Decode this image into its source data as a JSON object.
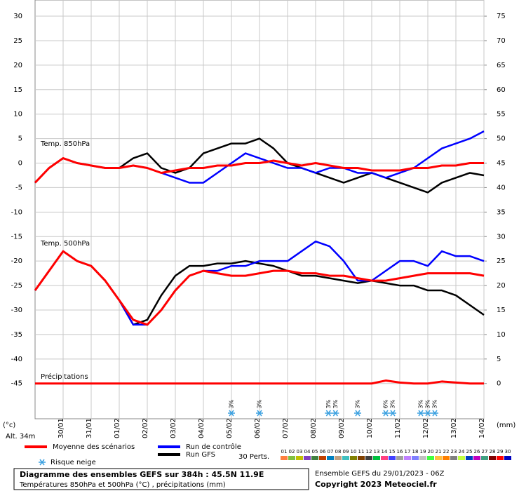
{
  "chart_data": {
    "type": "line",
    "title": "Diagramme des ensembles GEFS sur 384h : 45.5N 11.9E",
    "subtitle": "Températures 850hPa et 500hPa (°C) , précipitations (mm)",
    "run_info": "Ensemble GEFS du 29/01/2023 - 06Z",
    "copyright": "Copyright 2023 Meteociel.fr",
    "y_unit": "(°c)",
    "y2_unit": "(mm)",
    "altitude": "Alt. 34m",
    "annotations": {
      "t850": "Temp. 850hPa",
      "t500": "Temp. 500hPa",
      "precip": "Précipitations"
    },
    "grid": true,
    "xlim": [
      0,
      384
    ],
    "ylim": [
      -52.2,
      33.3
    ],
    "y2lim": [
      -7.2,
      78.3
    ],
    "yticks": [
      30,
      25,
      20,
      15,
      10,
      5,
      0,
      -5,
      -10,
      -15,
      -20,
      -25,
      -30,
      -35,
      -40,
      -45
    ],
    "y2ticks": [
      75,
      70,
      65,
      60,
      55,
      50,
      45,
      40,
      35,
      30,
      25,
      20,
      15,
      10,
      5,
      0
    ],
    "xticks": [
      {
        "value": 24,
        "label": "30/01"
      },
      {
        "value": 48,
        "label": "31/01"
      },
      {
        "value": 72,
        "label": "01/02"
      },
      {
        "value": 96,
        "label": "02/02"
      },
      {
        "value": 120,
        "label": "03/02"
      },
      {
        "value": 144,
        "label": "04/02"
      },
      {
        "value": 168,
        "label": "05/02"
      },
      {
        "value": 192,
        "label": "06/02"
      },
      {
        "value": 216,
        "label": "07/02"
      },
      {
        "value": 240,
        "label": "08/02"
      },
      {
        "value": 264,
        "label": "09/02"
      },
      {
        "value": 288,
        "label": "10/02"
      },
      {
        "value": 312,
        "label": "11/02"
      },
      {
        "value": 336,
        "label": "12/02"
      },
      {
        "value": 360,
        "label": "13/02"
      },
      {
        "value": 384,
        "label": "14/02"
      }
    ],
    "x": [
      0,
      12,
      24,
      36,
      48,
      60,
      72,
      84,
      96,
      108,
      120,
      132,
      144,
      156,
      168,
      180,
      192,
      204,
      216,
      228,
      240,
      252,
      264,
      276,
      288,
      300,
      312,
      324,
      336,
      348,
      360,
      372,
      384
    ],
    "series": [
      {
        "name": "Moyenne des scénarios",
        "color": "#ff0000",
        "values": {
          "t850": [
            -4,
            -1,
            1,
            0,
            -0.5,
            -1,
            -1,
            -0.5,
            -1,
            -2,
            -1.5,
            -1,
            -1,
            -0.5,
            -0.5,
            0,
            0,
            0.5,
            0,
            -0.5,
            0,
            -0.5,
            -1,
            -1,
            -1.5,
            -1.5,
            -1.5,
            -1,
            -1,
            -0.5,
            -0.5,
            0,
            0
          ],
          "t500": [
            -26,
            -22,
            -18,
            -20,
            -21,
            -24,
            -28,
            -32,
            -33,
            -30,
            -26,
            -23,
            -22,
            -22.5,
            -23,
            -23,
            -22.5,
            -22,
            -22,
            -22.5,
            -22.5,
            -23,
            -23,
            -23.5,
            -24,
            -24,
            -23.5,
            -23,
            -22.5,
            -22.5,
            -22.5,
            -22.5,
            -23
          ],
          "precip": [
            0,
            0,
            0,
            0,
            0,
            0,
            0,
            0,
            0,
            0,
            0,
            0,
            0,
            0,
            0,
            0,
            0,
            0,
            0,
            0,
            0,
            0,
            0,
            0,
            0,
            0.6,
            0.2,
            0,
            0,
            0.4,
            0.2,
            0,
            0
          ]
        }
      },
      {
        "name": "Run de contrôle",
        "color": "#0000ff",
        "values": {
          "t850": [
            -4,
            -1,
            1,
            0,
            -0.5,
            -1,
            -1,
            -0.5,
            -1,
            -2,
            -3,
            -4,
            -4,
            -2,
            0,
            2,
            1,
            0,
            -1,
            -1,
            -2,
            -1,
            -1,
            -2,
            -2,
            -3,
            -2,
            -1,
            1,
            3,
            4,
            5,
            6.5
          ],
          "t500": [
            -26,
            -22,
            -18,
            -20,
            -21,
            -24,
            -28,
            -33,
            -33,
            -30,
            -26,
            -23,
            -22,
            -22,
            -21,
            -21,
            -20,
            -20,
            -20,
            -18,
            -16,
            -17,
            -20,
            -24,
            -24,
            -22,
            -20,
            -20,
            -21,
            -18,
            -19,
            -19,
            -20
          ]
        }
      },
      {
        "name": "Run GFS",
        "color": "#000000",
        "values": {
          "t850": [
            -4,
            -1,
            1,
            0,
            -0.5,
            -1,
            -1,
            1,
            2,
            -1,
            -2,
            -1,
            2,
            3,
            4,
            4,
            5,
            3,
            0,
            -1,
            -2,
            -3,
            -4,
            -3,
            -2,
            -3,
            -4,
            -5,
            -6,
            -4,
            -3,
            -2,
            -2.5
          ],
          "t500": [
            -26,
            -22,
            -18,
            -20,
            -21,
            -24,
            -28,
            -33,
            -32,
            -27,
            -23,
            -21,
            -21,
            -20.5,
            -20.5,
            -20,
            -20.5,
            -21,
            -22,
            -23,
            -23,
            -23.5,
            -24,
            -24.5,
            -24,
            -24.5,
            -25,
            -25,
            -26,
            -26,
            -27,
            -29,
            -31
          ]
        }
      }
    ],
    "snow_risk": {
      "label": "Risque neige",
      "markers": [
        {
          "hour": 168,
          "label": "3%"
        },
        {
          "hour": 192,
          "label": "3%"
        },
        {
          "hour": 251,
          "label": "3%"
        },
        {
          "hour": 257,
          "label": "3%"
        },
        {
          "hour": 276,
          "label": "3%"
        },
        {
          "hour": 300,
          "label": "6%"
        },
        {
          "hour": 306,
          "label": "3%"
        },
        {
          "hour": 330,
          "label": "3%"
        },
        {
          "hour": 336,
          "label": "3%"
        },
        {
          "hour": 342,
          "label": "3%"
        }
      ]
    },
    "perturbations": {
      "label": "30 Perts.",
      "items": [
        {
          "label": "01",
          "color": "#ff8040"
        },
        {
          "label": "02",
          "color": "#80c040"
        },
        {
          "label": "03",
          "color": "#c0c000"
        },
        {
          "label": "04",
          "color": "#8040c0"
        },
        {
          "label": "05",
          "color": "#408040"
        },
        {
          "label": "06",
          "color": "#c04000"
        },
        {
          "label": "07",
          "color": "#0080c0"
        },
        {
          "label": "08",
          "color": "#c0a080"
        },
        {
          "label": "09",
          "color": "#40c0c0"
        },
        {
          "label": "10",
          "color": "#808000"
        },
        {
          "label": "11",
          "color": "#804000"
        },
        {
          "label": "12",
          "color": "#404040"
        },
        {
          "label": "13",
          "color": "#00c040"
        },
        {
          "label": "14",
          "color": "#ff4080"
        },
        {
          "label": "15",
          "color": "#4040ff"
        },
        {
          "label": "16",
          "color": "#a0a0a0"
        },
        {
          "label": "17",
          "color": "#c080ff"
        },
        {
          "label": "18",
          "color": "#8080ff"
        },
        {
          "label": "19",
          "color": "#c0c0c0"
        },
        {
          "label": "20",
          "color": "#40ff40"
        },
        {
          "label": "21",
          "color": "#ffc040"
        },
        {
          "label": "22",
          "color": "#ff8000"
        },
        {
          "label": "23",
          "color": "#808080"
        },
        {
          "label": "24",
          "color": "#c0ff40"
        },
        {
          "label": "25",
          "color": "#0040c0"
        },
        {
          "label": "26",
          "color": "#c000c0"
        },
        {
          "label": "27",
          "color": "#40a080"
        },
        {
          "label": "28",
          "color": "#800000"
        },
        {
          "label": "29",
          "color": "#ff0000"
        },
        {
          "label": "30",
          "color": "#0000c0"
        }
      ]
    }
  }
}
